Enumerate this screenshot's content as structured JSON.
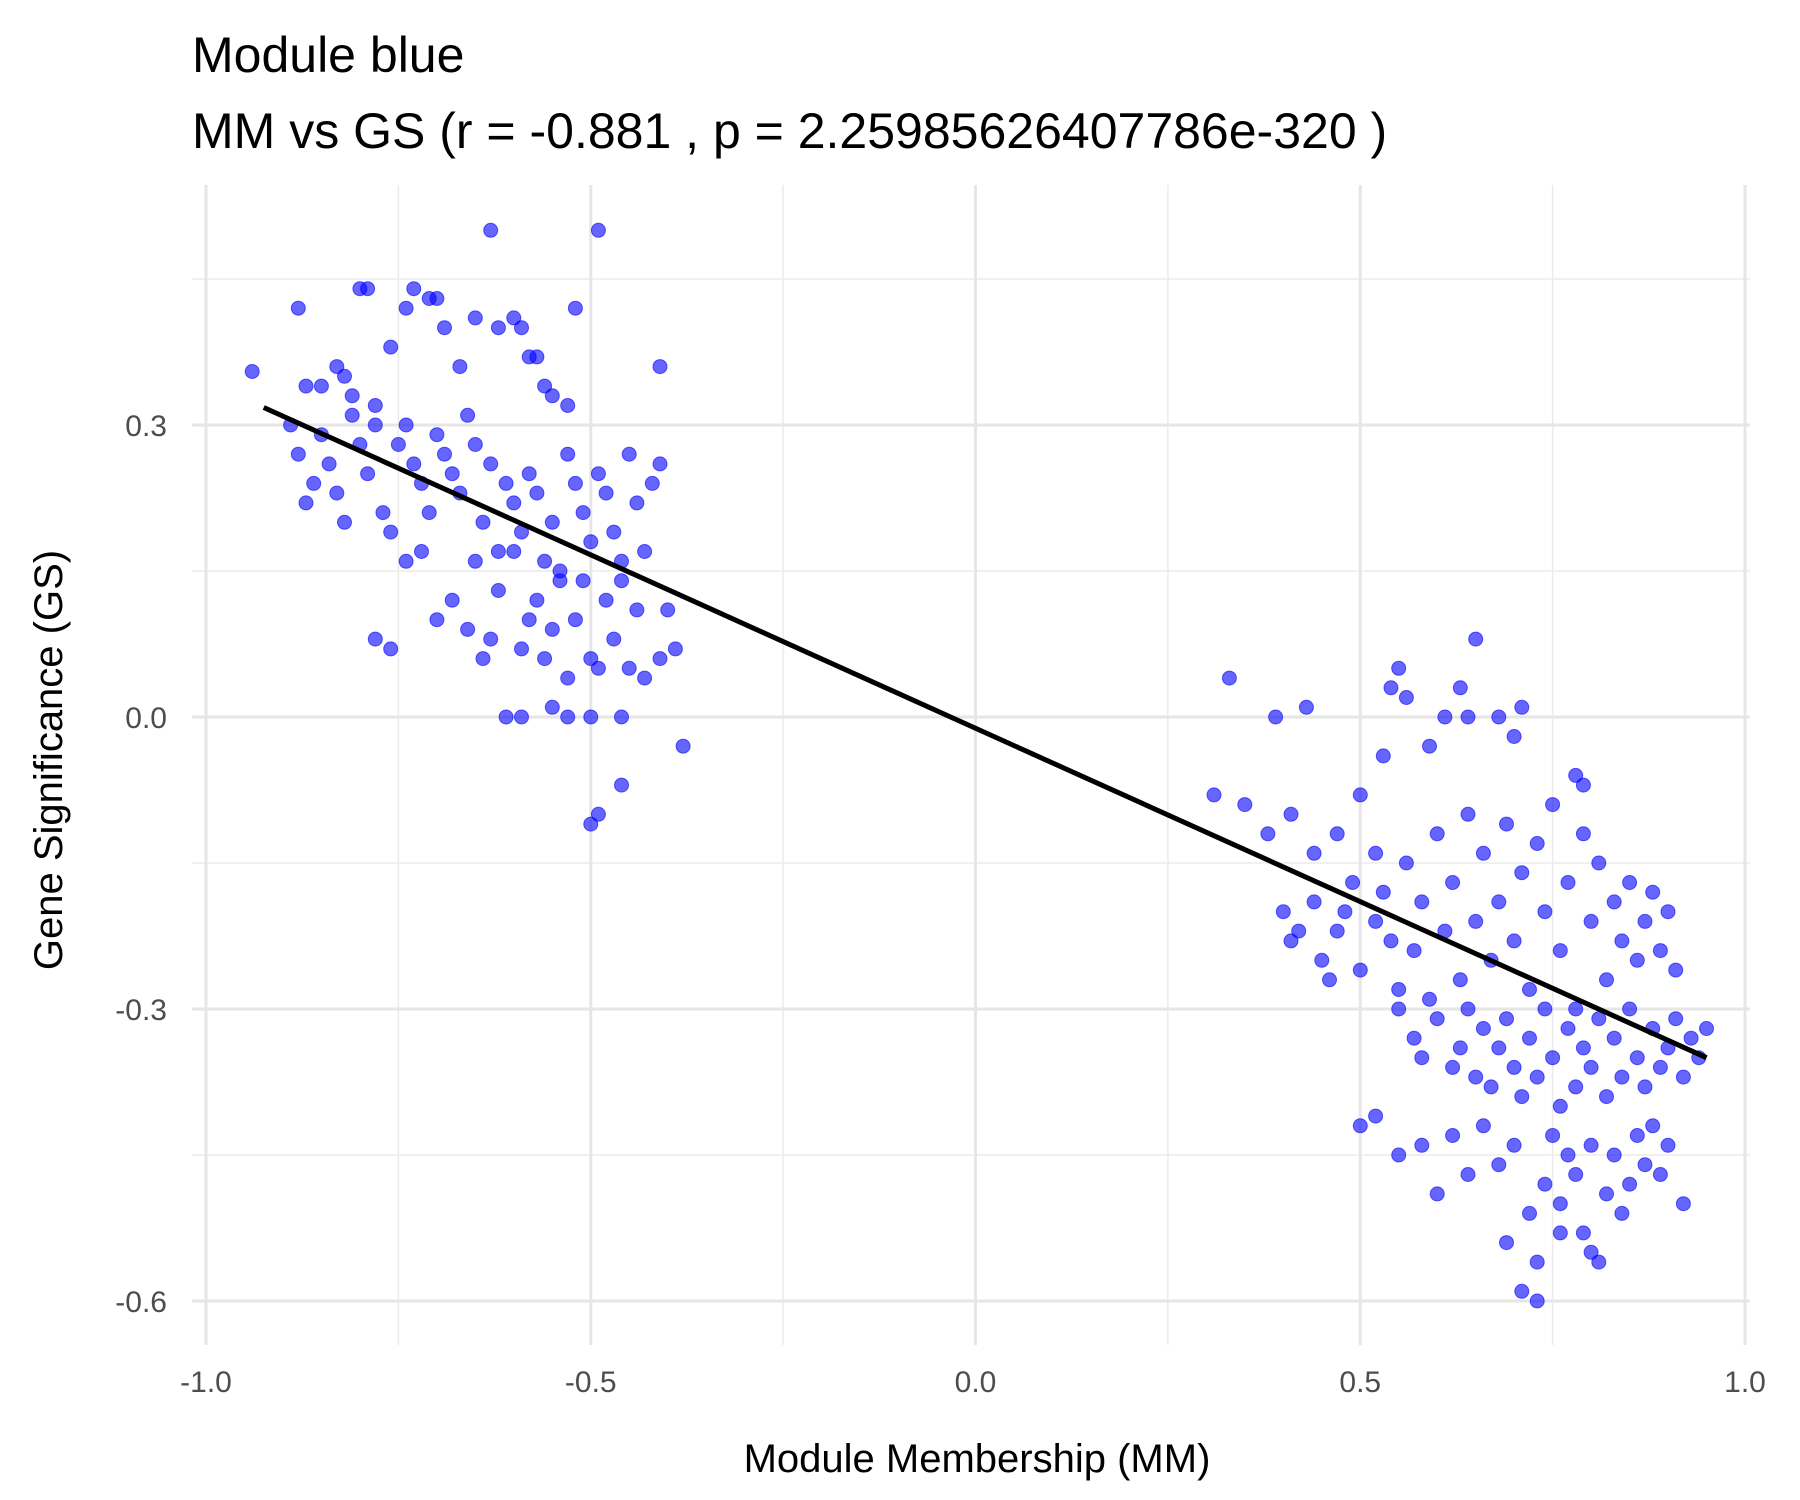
{
  "chart_data": {
    "type": "scatter",
    "title": "Module blue",
    "subtitle": "MM vs GS (r = -0.881 , p = 2.25985626407786e-320 )",
    "xlabel": "Module Membership (MM)",
    "ylabel": "Gene Significance (GS)",
    "xlim": [
      -1.0,
      1.0
    ],
    "ylim": [
      -0.6,
      0.5
    ],
    "x_ticks": [
      -1.0,
      -0.5,
      0.0,
      0.5,
      1.0
    ],
    "x_tick_labels": [
      "-1.0",
      "-0.5",
      "0.0",
      "0.5",
      "1.0"
    ],
    "y_ticks": [
      -0.6,
      -0.3,
      0.0,
      0.3
    ],
    "y_tick_labels": [
      "-0.6",
      "-0.3",
      "0.0",
      "0.3"
    ],
    "grid": true,
    "point_color": "#0000ff",
    "line_color": "#000000",
    "trend_line": {
      "x": [
        -0.925,
        0.95
      ],
      "y": [
        0.318,
        -0.35
      ]
    },
    "series": [
      {
        "points": [
          [
            -0.94,
            0.355
          ],
          [
            -0.88,
            0.42
          ],
          [
            -0.87,
            0.34
          ],
          [
            -0.85,
            0.34
          ],
          [
            -0.83,
            0.36
          ],
          [
            -0.82,
            0.35
          ],
          [
            -0.81,
            0.33
          ],
          [
            -0.8,
            0.44
          ],
          [
            -0.79,
            0.44
          ],
          [
            -0.78,
            0.32
          ],
          [
            -0.76,
            0.38
          ],
          [
            -0.74,
            0.42
          ],
          [
            -0.73,
            0.44
          ],
          [
            -0.71,
            0.43
          ],
          [
            -0.7,
            0.43
          ],
          [
            -0.69,
            0.4
          ],
          [
            -0.67,
            0.36
          ],
          [
            -0.65,
            0.41
          ],
          [
            -0.63,
            0.5
          ],
          [
            -0.62,
            0.4
          ],
          [
            -0.6,
            0.41
          ],
          [
            -0.59,
            0.4
          ],
          [
            -0.58,
            0.37
          ],
          [
            -0.57,
            0.37
          ],
          [
            -0.56,
            0.34
          ],
          [
            -0.55,
            0.33
          ],
          [
            -0.53,
            0.32
          ],
          [
            -0.52,
            0.42
          ],
          [
            -0.49,
            0.5
          ],
          [
            -0.41,
            0.36
          ],
          [
            -0.89,
            0.3
          ],
          [
            -0.88,
            0.27
          ],
          [
            -0.87,
            0.22
          ],
          [
            -0.86,
            0.24
          ],
          [
            -0.85,
            0.29
          ],
          [
            -0.84,
            0.26
          ],
          [
            -0.83,
            0.23
          ],
          [
            -0.82,
            0.2
          ],
          [
            -0.81,
            0.31
          ],
          [
            -0.8,
            0.28
          ],
          [
            -0.79,
            0.25
          ],
          [
            -0.78,
            0.3
          ],
          [
            -0.77,
            0.21
          ],
          [
            -0.76,
            0.19
          ],
          [
            -0.75,
            0.28
          ],
          [
            -0.74,
            0.3
          ],
          [
            -0.73,
            0.26
          ],
          [
            -0.72,
            0.24
          ],
          [
            -0.71,
            0.21
          ],
          [
            -0.7,
            0.29
          ],
          [
            -0.69,
            0.27
          ],
          [
            -0.68,
            0.25
          ],
          [
            -0.67,
            0.23
          ],
          [
            -0.66,
            0.31
          ],
          [
            -0.65,
            0.28
          ],
          [
            -0.64,
            0.2
          ],
          [
            -0.63,
            0.26
          ],
          [
            -0.62,
            0.17
          ],
          [
            -0.61,
            0.24
          ],
          [
            -0.6,
            0.22
          ],
          [
            -0.59,
            0.19
          ],
          [
            -0.58,
            0.25
          ],
          [
            -0.57,
            0.23
          ],
          [
            -0.56,
            0.16
          ],
          [
            -0.55,
            0.2
          ],
          [
            -0.54,
            0.14
          ],
          [
            -0.53,
            0.27
          ],
          [
            -0.52,
            0.24
          ],
          [
            -0.51,
            0.21
          ],
          [
            -0.5,
            0.18
          ],
          [
            -0.49,
            0.25
          ],
          [
            -0.48,
            0.23
          ],
          [
            -0.47,
            0.19
          ],
          [
            -0.46,
            0.14
          ],
          [
            -0.45,
            0.27
          ],
          [
            -0.44,
            0.22
          ],
          [
            -0.43,
            0.17
          ],
          [
            -0.42,
            0.24
          ],
          [
            -0.41,
            0.26
          ],
          [
            -0.4,
            0.11
          ],
          [
            -0.78,
            0.08
          ],
          [
            -0.76,
            0.07
          ],
          [
            -0.74,
            0.16
          ],
          [
            -0.72,
            0.17
          ],
          [
            -0.7,
            0.1
          ],
          [
            -0.68,
            0.12
          ],
          [
            -0.66,
            0.09
          ],
          [
            -0.65,
            0.16
          ],
          [
            -0.64,
            0.06
          ],
          [
            -0.63,
            0.08
          ],
          [
            -0.62,
            0.13
          ],
          [
            -0.6,
            0.17
          ],
          [
            -0.59,
            0.07
          ],
          [
            -0.58,
            0.1
          ],
          [
            -0.57,
            0.12
          ],
          [
            -0.56,
            0.06
          ],
          [
            -0.55,
            0.09
          ],
          [
            -0.54,
            0.15
          ],
          [
            -0.53,
            0.04
          ],
          [
            -0.52,
            0.1
          ],
          [
            -0.51,
            0.14
          ],
          [
            -0.5,
            0.06
          ],
          [
            -0.49,
            0.05
          ],
          [
            -0.48,
            0.12
          ],
          [
            -0.47,
            0.08
          ],
          [
            -0.46,
            0.16
          ],
          [
            -0.45,
            0.05
          ],
          [
            -0.44,
            0.11
          ],
          [
            -0.43,
            0.04
          ],
          [
            -0.41,
            0.06
          ],
          [
            -0.39,
            0.07
          ],
          [
            -0.61,
            0.0
          ],
          [
            -0.59,
            0.0
          ],
          [
            -0.55,
            0.01
          ],
          [
            -0.53,
            0.0
          ],
          [
            -0.5,
            0.0
          ],
          [
            -0.46,
            0.0
          ],
          [
            -0.38,
            -0.03
          ],
          [
            -0.46,
            -0.07
          ],
          [
            -0.49,
            -0.1
          ],
          [
            -0.5,
            -0.11
          ],
          [
            0.33,
            0.04
          ],
          [
            0.39,
            0.0
          ],
          [
            0.43,
            0.01
          ],
          [
            0.31,
            -0.08
          ],
          [
            0.35,
            -0.09
          ],
          [
            0.38,
            -0.12
          ],
          [
            0.41,
            -0.1
          ],
          [
            0.44,
            -0.14
          ],
          [
            0.47,
            -0.12
          ],
          [
            0.5,
            -0.08
          ],
          [
            0.52,
            -0.14
          ],
          [
            0.53,
            -0.04
          ],
          [
            0.54,
            0.03
          ],
          [
            0.55,
            0.05
          ],
          [
            0.56,
            0.02
          ],
          [
            0.59,
            -0.03
          ],
          [
            0.61,
            0.0
          ],
          [
            0.63,
            0.03
          ],
          [
            0.64,
            0.0
          ],
          [
            0.65,
            0.08
          ],
          [
            0.68,
            0.0
          ],
          [
            0.7,
            -0.02
          ],
          [
            0.71,
            0.01
          ],
          [
            0.78,
            -0.06
          ],
          [
            0.79,
            -0.07
          ],
          [
            0.4,
            -0.2
          ],
          [
            0.41,
            -0.23
          ],
          [
            0.42,
            -0.22
          ],
          [
            0.44,
            -0.19
          ],
          [
            0.45,
            -0.25
          ],
          [
            0.46,
            -0.27
          ],
          [
            0.47,
            -0.22
          ],
          [
            0.48,
            -0.2
          ],
          [
            0.49,
            -0.17
          ],
          [
            0.5,
            -0.26
          ],
          [
            0.52,
            -0.21
          ],
          [
            0.53,
            -0.18
          ],
          [
            0.54,
            -0.23
          ],
          [
            0.55,
            -0.28
          ],
          [
            0.56,
            -0.15
          ],
          [
            0.57,
            -0.24
          ],
          [
            0.58,
            -0.19
          ],
          [
            0.59,
            -0.29
          ],
          [
            0.6,
            -0.12
          ],
          [
            0.61,
            -0.22
          ],
          [
            0.62,
            -0.17
          ],
          [
            0.63,
            -0.27
          ],
          [
            0.64,
            -0.1
          ],
          [
            0.65,
            -0.21
          ],
          [
            0.66,
            -0.14
          ],
          [
            0.67,
            -0.25
          ],
          [
            0.68,
            -0.19
          ],
          [
            0.69,
            -0.11
          ],
          [
            0.7,
            -0.23
          ],
          [
            0.71,
            -0.16
          ],
          [
            0.72,
            -0.28
          ],
          [
            0.73,
            -0.13
          ],
          [
            0.74,
            -0.2
          ],
          [
            0.75,
            -0.09
          ],
          [
            0.76,
            -0.24
          ],
          [
            0.77,
            -0.17
          ],
          [
            0.78,
            -0.3
          ],
          [
            0.79,
            -0.12
          ],
          [
            0.8,
            -0.21
          ],
          [
            0.81,
            -0.15
          ],
          [
            0.82,
            -0.27
          ],
          [
            0.83,
            -0.19
          ],
          [
            0.84,
            -0.23
          ],
          [
            0.85,
            -0.17
          ],
          [
            0.86,
            -0.25
          ],
          [
            0.87,
            -0.21
          ],
          [
            0.88,
            -0.18
          ],
          [
            0.89,
            -0.24
          ],
          [
            0.9,
            -0.2
          ],
          [
            0.91,
            -0.26
          ],
          [
            0.55,
            -0.3
          ],
          [
            0.57,
            -0.33
          ],
          [
            0.58,
            -0.35
          ],
          [
            0.6,
            -0.31
          ],
          [
            0.62,
            -0.36
          ],
          [
            0.63,
            -0.34
          ],
          [
            0.64,
            -0.3
          ],
          [
            0.65,
            -0.37
          ],
          [
            0.66,
            -0.32
          ],
          [
            0.67,
            -0.38
          ],
          [
            0.68,
            -0.34
          ],
          [
            0.69,
            -0.31
          ],
          [
            0.7,
            -0.36
          ],
          [
            0.71,
            -0.39
          ],
          [
            0.72,
            -0.33
          ],
          [
            0.73,
            -0.37
          ],
          [
            0.74,
            -0.3
          ],
          [
            0.75,
            -0.35
          ],
          [
            0.76,
            -0.4
          ],
          [
            0.77,
            -0.32
          ],
          [
            0.78,
            -0.38
          ],
          [
            0.79,
            -0.34
          ],
          [
            0.8,
            -0.36
          ],
          [
            0.81,
            -0.31
          ],
          [
            0.82,
            -0.39
          ],
          [
            0.83,
            -0.33
          ],
          [
            0.84,
            -0.37
          ],
          [
            0.85,
            -0.3
          ],
          [
            0.86,
            -0.35
          ],
          [
            0.87,
            -0.38
          ],
          [
            0.88,
            -0.32
          ],
          [
            0.89,
            -0.36
          ],
          [
            0.9,
            -0.34
          ],
          [
            0.91,
            -0.31
          ],
          [
            0.92,
            -0.37
          ],
          [
            0.93,
            -0.33
          ],
          [
            0.94,
            -0.35
          ],
          [
            0.95,
            -0.32
          ],
          [
            0.5,
            -0.42
          ],
          [
            0.52,
            -0.41
          ],
          [
            0.55,
            -0.45
          ],
          [
            0.58,
            -0.44
          ],
          [
            0.6,
            -0.49
          ],
          [
            0.62,
            -0.43
          ],
          [
            0.64,
            -0.47
          ],
          [
            0.66,
            -0.42
          ],
          [
            0.68,
            -0.46
          ],
          [
            0.69,
            -0.54
          ],
          [
            0.7,
            -0.44
          ],
          [
            0.71,
            -0.59
          ],
          [
            0.72,
            -0.51
          ],
          [
            0.73,
            -0.56
          ],
          [
            0.74,
            -0.48
          ],
          [
            0.75,
            -0.43
          ],
          [
            0.76,
            -0.5
          ],
          [
            0.77,
            -0.45
          ],
          [
            0.78,
            -0.47
          ],
          [
            0.79,
            -0.53
          ],
          [
            0.8,
            -0.44
          ],
          [
            0.81,
            -0.56
          ],
          [
            0.82,
            -0.49
          ],
          [
            0.83,
            -0.45
          ],
          [
            0.84,
            -0.51
          ],
          [
            0.85,
            -0.48
          ],
          [
            0.86,
            -0.43
          ],
          [
            0.87,
            -0.46
          ],
          [
            0.88,
            -0.42
          ],
          [
            0.89,
            -0.47
          ],
          [
            0.9,
            -0.44
          ],
          [
            0.92,
            -0.5
          ],
          [
            0.73,
            -0.6
          ],
          [
            0.76,
            -0.53
          ],
          [
            0.8,
            -0.55
          ]
        ]
      }
    ]
  }
}
